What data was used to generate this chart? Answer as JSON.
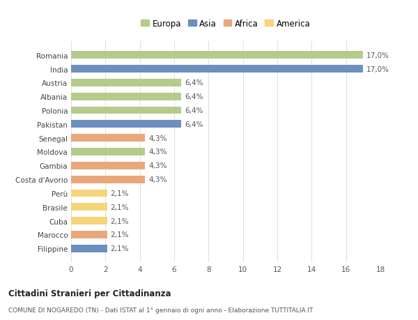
{
  "categories": [
    "Filippine",
    "Marocco",
    "Cuba",
    "Brasile",
    "Perù",
    "Costa d'Avorio",
    "Gambia",
    "Moldova",
    "Senegal",
    "Pakistan",
    "Polonia",
    "Albania",
    "Austria",
    "India",
    "Romania"
  ],
  "values": [
    2.1,
    2.1,
    2.1,
    2.1,
    2.1,
    4.3,
    4.3,
    4.3,
    4.3,
    6.4,
    6.4,
    6.4,
    6.4,
    17.0,
    17.0
  ],
  "colors": [
    "#6b8fbe",
    "#e8a87c",
    "#f5d47a",
    "#f5d47a",
    "#f5d47a",
    "#e8a87c",
    "#e8a87c",
    "#b5cb8b",
    "#e8a87c",
    "#6b8fbe",
    "#b5cb8b",
    "#b5cb8b",
    "#b5cb8b",
    "#6b8fbe",
    "#b5cb8b"
  ],
  "labels": [
    "2,1%",
    "2,1%",
    "2,1%",
    "2,1%",
    "2,1%",
    "4,3%",
    "4,3%",
    "4,3%",
    "4,3%",
    "6,4%",
    "6,4%",
    "6,4%",
    "6,4%",
    "17,0%",
    "17,0%"
  ],
  "legend": [
    {
      "label": "Europa",
      "color": "#b5cb8b"
    },
    {
      "label": "Asia",
      "color": "#6b8fbe"
    },
    {
      "label": "Africa",
      "color": "#e8a87c"
    },
    {
      "label": "America",
      "color": "#f5d47a"
    }
  ],
  "xlim": [
    0,
    18
  ],
  "xticks": [
    0,
    2,
    4,
    6,
    8,
    10,
    12,
    14,
    16,
    18
  ],
  "title_bold": "Cittadini Stranieri per Cittadinanza",
  "title_sub": "COMUNE DI NOGAREDO (TN) - Dati ISTAT al 1° gennaio di ogni anno - Elaborazione TUTTITALIA.IT",
  "background_color": "#ffffff",
  "grid_color": "#e0e0e0"
}
